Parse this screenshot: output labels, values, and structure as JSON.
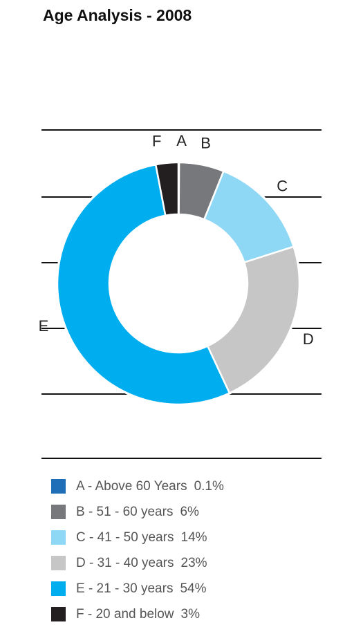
{
  "chart_data": {
    "type": "donut",
    "title": "Age Analysis - 2008",
    "categories": [
      "A",
      "B",
      "C",
      "D",
      "E",
      "F"
    ],
    "legend_labels": [
      "A - Above 60 Years",
      "B - 51 - 60 years",
      "C - 41 - 50 years",
      "D - 31 - 40 years",
      "E - 21 - 30 years",
      "F - 20 and below"
    ],
    "values": [
      0.1,
      6,
      14,
      23,
      54,
      3
    ],
    "value_labels": [
      "0.1%",
      "6%",
      "14%",
      "23%",
      "54%",
      "3%"
    ],
    "colors": [
      "#1f6fb8",
      "#77787b",
      "#8fd8f5",
      "#c6c6c6",
      "#00aeef",
      "#231f20"
    ]
  }
}
